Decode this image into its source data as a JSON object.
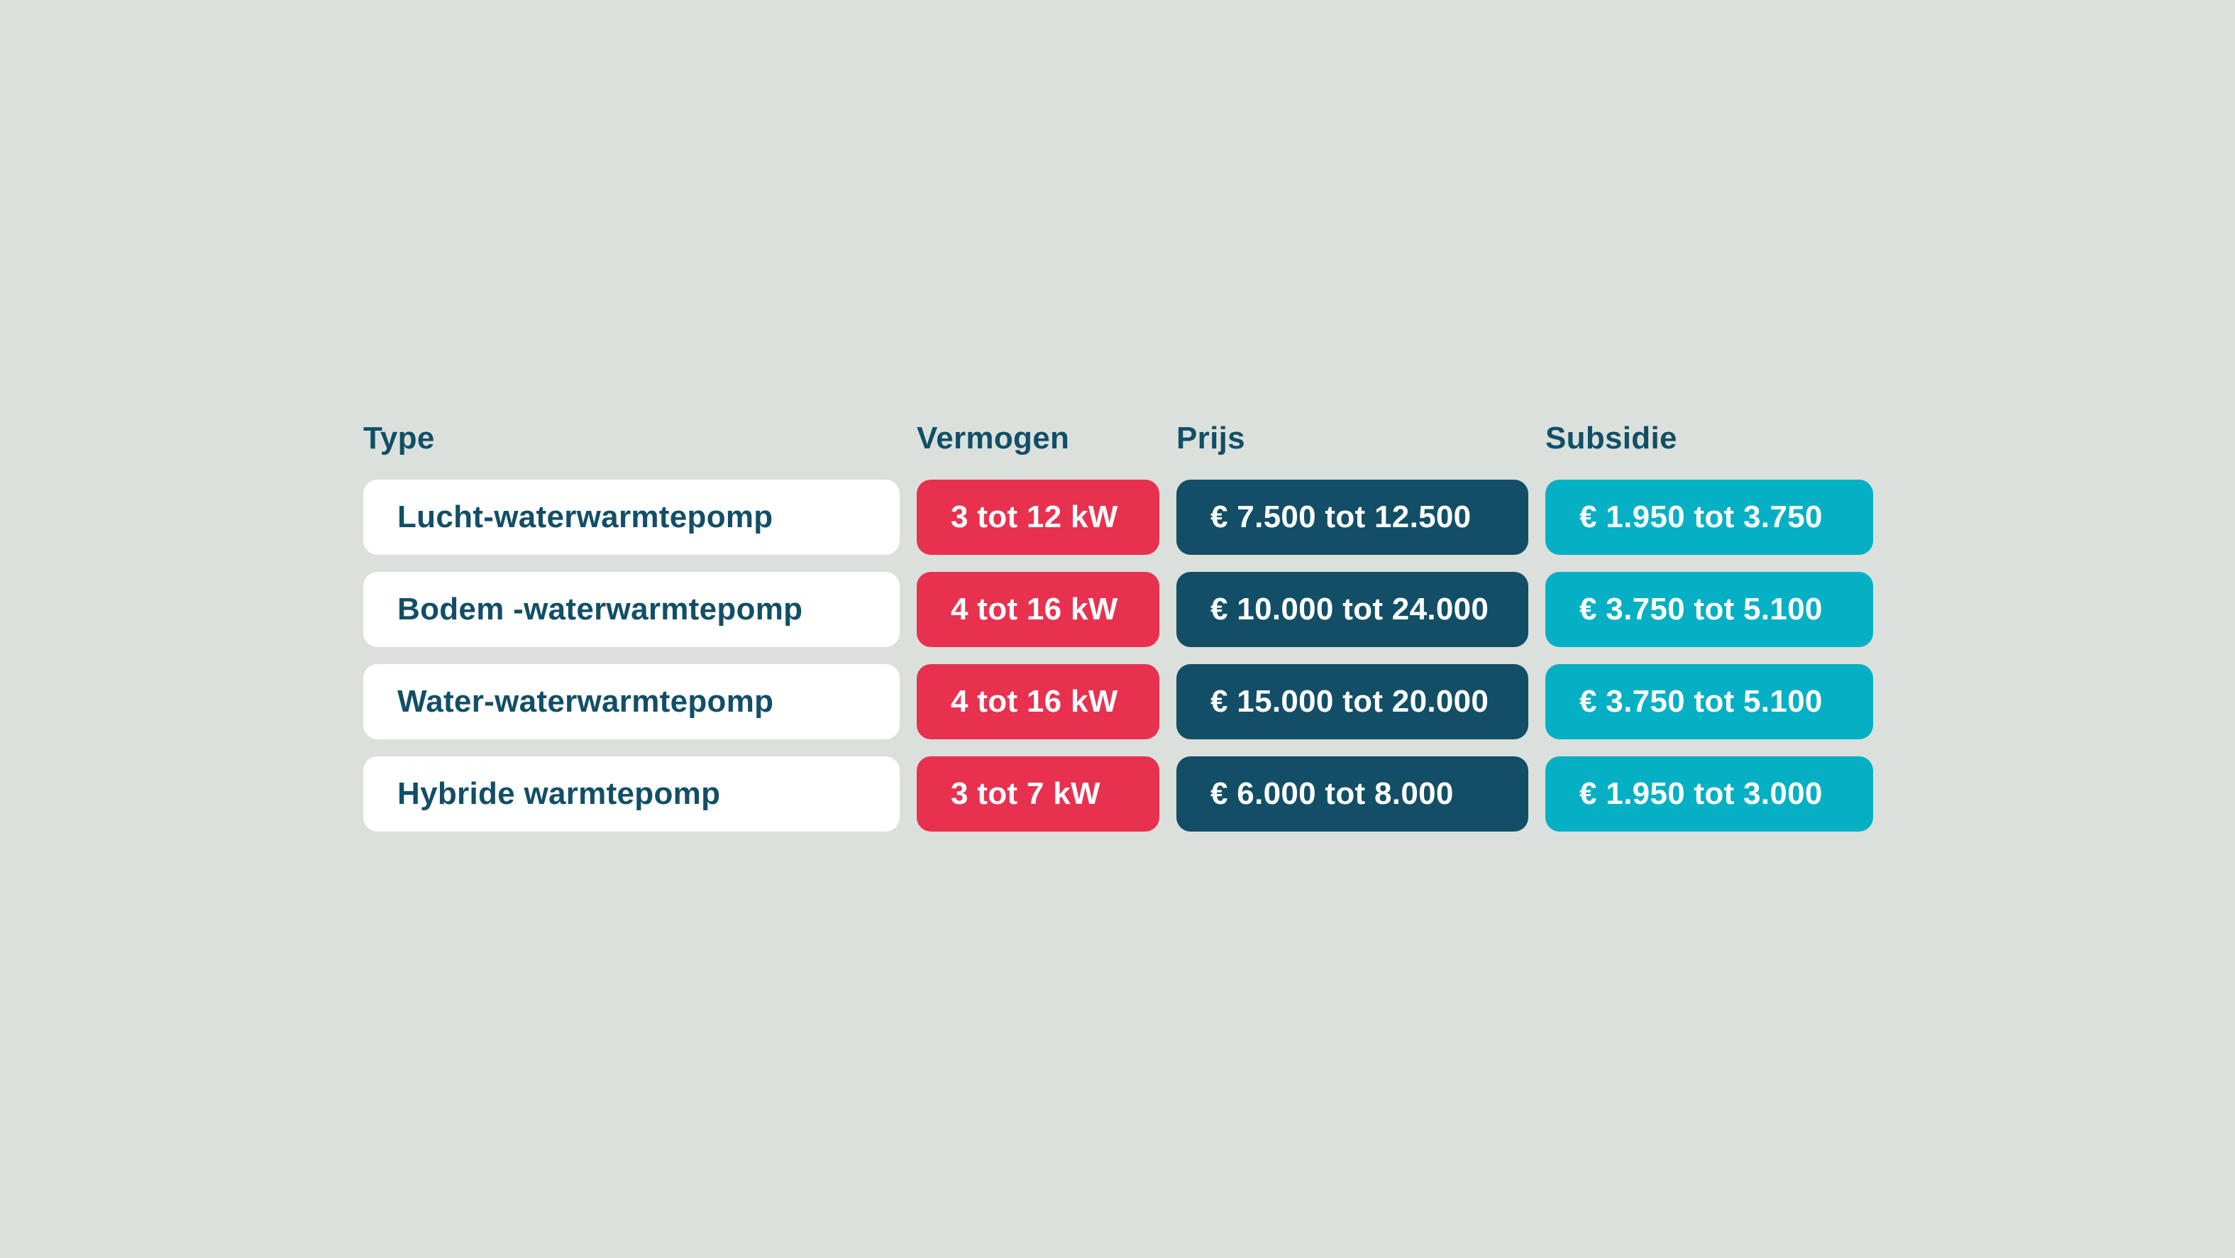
{
  "colors": {
    "background": "#dbe0dc",
    "header_text": "#124f66",
    "type_bg": "#ffffff",
    "type_text": "#124f66",
    "vermogen_bg": "#e8314f",
    "prijs_bg": "#124f66",
    "subsidie_bg": "#05b0c4",
    "value_text": "#ffffff"
  },
  "headers": {
    "type": "Type",
    "vermogen": "Vermogen",
    "prijs": "Prijs",
    "subsidie": "Subsidie"
  },
  "rows": [
    {
      "type": "Lucht-waterwarmtepomp",
      "vermogen": "3 tot 12 kW",
      "prijs": "€ 7.500 tot 12.500",
      "subsidie": "€ 1.950 tot 3.750"
    },
    {
      "type": "Bodem -waterwarmtepomp",
      "vermogen": "4 tot 16 kW",
      "prijs": "€ 10.000 tot 24.000",
      "subsidie": "€ 3.750 tot 5.100"
    },
    {
      "type": "Water-waterwarmtepomp",
      "vermogen": "4 tot 16 kW",
      "prijs": "€ 15.000 tot 20.000",
      "subsidie": "€ 3.750 tot 5.100"
    },
    {
      "type": "Hybride warmtepomp",
      "vermogen": "3 tot 7 kW",
      "prijs": "€ 6.000 tot 8.000",
      "subsidie": "€ 1.950 tot 3.000"
    }
  ]
}
